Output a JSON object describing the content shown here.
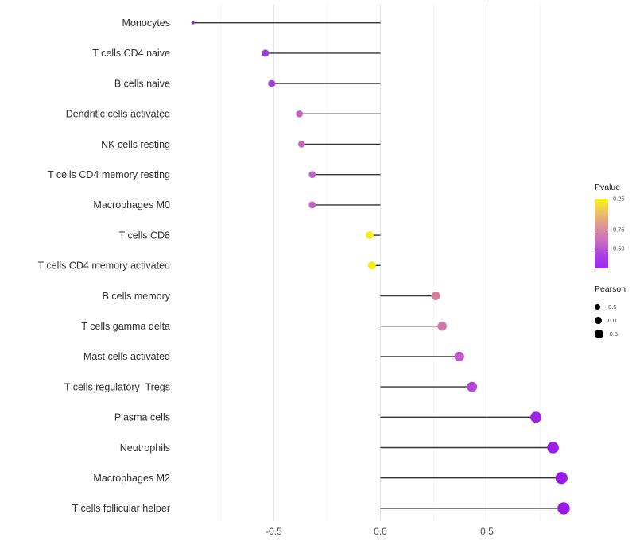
{
  "chart_data": {
    "type": "lollipop",
    "orientation": "horizontal",
    "title": "",
    "xlabel": "",
    "ylabel": "",
    "background": "#ffffff",
    "stem_color": "#333333",
    "xlim": [
      -0.97,
      0.96
    ],
    "x_ticks": [
      {
        "value": -0.5,
        "label": "-0.5"
      },
      {
        "value": 0.0,
        "label": "0.0"
      },
      {
        "value": 0.5,
        "label": "0.5"
      }
    ],
    "gridline_values": [
      -0.75,
      -0.5,
      -0.25,
      0.0,
      0.25,
      0.5,
      0.75
    ],
    "major_gridline_values": [
      -0.5,
      0.0,
      0.5
    ],
    "rows": [
      {
        "label": "Monocytes",
        "pearson": -0.88,
        "color": "#8b2ae0",
        "dot_r": 2.0
      },
      {
        "label": "T cells CD4 naive",
        "pearson": -0.54,
        "color": "#9e38db",
        "dot_r": 4.5
      },
      {
        "label": "B cells naive",
        "pearson": -0.51,
        "color": "#a23bd8",
        "dot_r": 4.5
      },
      {
        "label": "Dendritic cells activated",
        "pearson": -0.38,
        "color": "#c75fc4",
        "dot_r": 4.3
      },
      {
        "label": "NK cells resting",
        "pearson": -0.37,
        "color": "#c660c5",
        "dot_r": 4.3
      },
      {
        "label": "T cells CD4 memory resting",
        "pearson": -0.32,
        "color": "#c262c4",
        "dot_r": 4.4
      },
      {
        "label": "Macrophages M0",
        "pearson": -0.32,
        "color": "#c364c3",
        "dot_r": 4.4
      },
      {
        "label": "T cells CD8",
        "pearson": -0.05,
        "color": "#f7ec15",
        "dot_r": 5.0
      },
      {
        "label": "T cells CD4 memory activated",
        "pearson": -0.04,
        "color": "#f7ec15",
        "dot_r": 5.0
      },
      {
        "label": "B cells memory",
        "pearson": 0.26,
        "color": "#db7e9e",
        "dot_r": 5.5
      },
      {
        "label": "T cells gamma delta",
        "pearson": 0.29,
        "color": "#d573ab",
        "dot_r": 5.7
      },
      {
        "label": "Mast cells activated",
        "pearson": 0.37,
        "color": "#c058cc",
        "dot_r": 6.2
      },
      {
        "label": "T cells regulatory  Tregs",
        "pearson": 0.43,
        "color": "#b348d6",
        "dot_r": 6.4
      },
      {
        "label": "Plasma cells",
        "pearson": 0.73,
        "color": "#9d25e6",
        "dot_r": 7.0
      },
      {
        "label": "Neutrophils",
        "pearson": 0.81,
        "color": "#9a1de8",
        "dot_r": 7.3
      },
      {
        "label": "Macrophages M2",
        "pearson": 0.85,
        "color": "#9919e9",
        "dot_r": 7.6
      },
      {
        "label": "T cells follicular helper",
        "pearson": 0.86,
        "color": "#9919e9",
        "dot_r": 7.7
      }
    ],
    "legends": {
      "pvalue": {
        "title": "Pvalue",
        "tick_labels": [
          "0.75",
          "0.50",
          "0.25"
        ],
        "gradient_top_to_bottom": [
          "#f9f514",
          "#eec163",
          "#dd9399",
          "#c96fc0",
          "#ab3fe3",
          "#9c2bef"
        ]
      },
      "pearson": {
        "title": "Pearson",
        "items": [
          {
            "label": "-0.5",
            "r": 3.3
          },
          {
            "label": "0.0",
            "r": 4.3
          },
          {
            "label": "0.5",
            "r": 5.3
          }
        ]
      }
    }
  }
}
